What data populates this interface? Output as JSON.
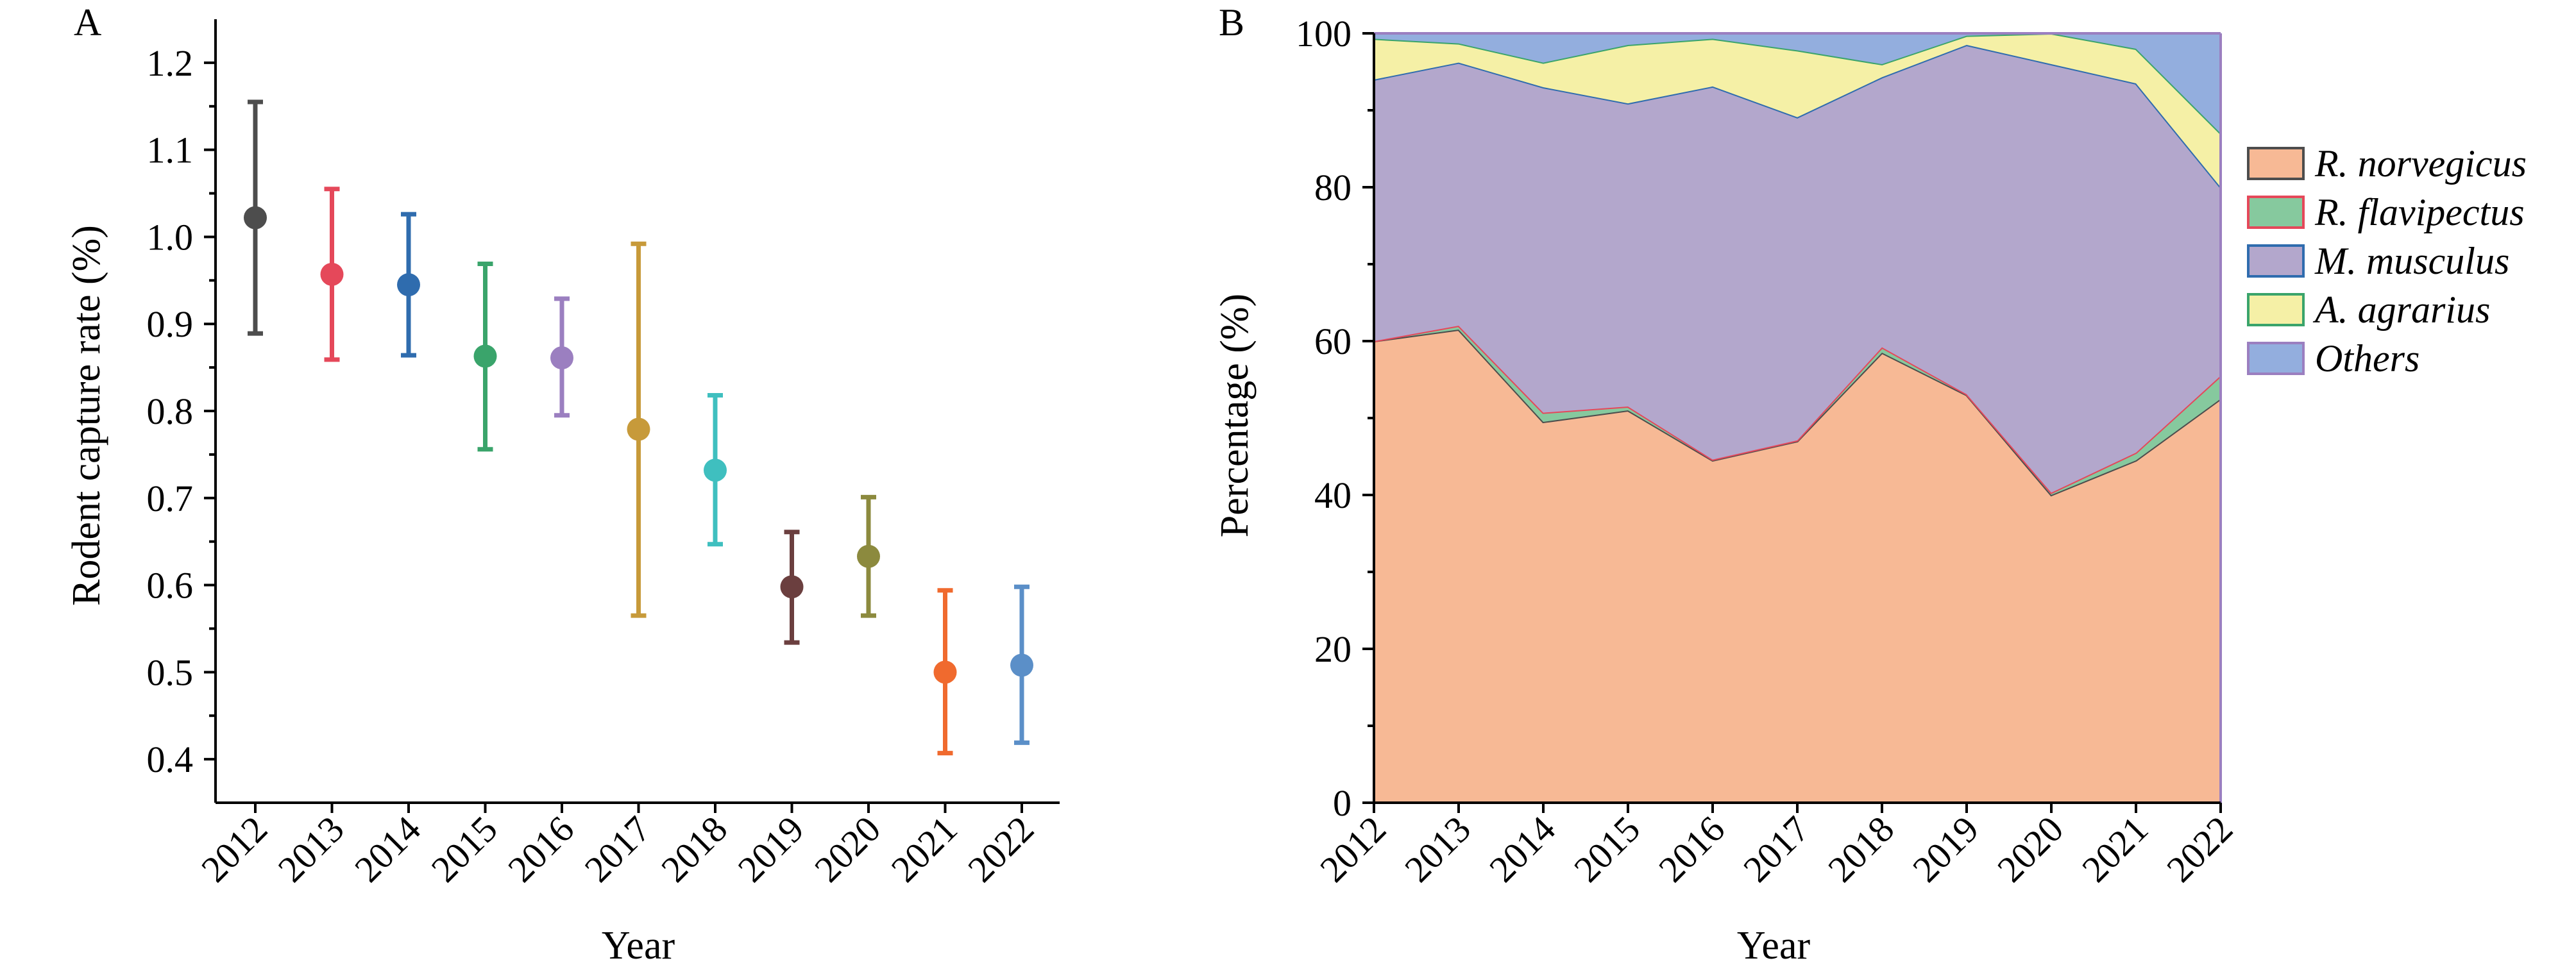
{
  "chart_data": [
    {
      "type": "scatter",
      "panel_label": "A",
      "xlabel": "Year",
      "ylabel": "Rodent capture rate (%)",
      "categories": [
        "2012",
        "2013",
        "2014",
        "2015",
        "2016",
        "2017",
        "2018",
        "2019",
        "2020",
        "2021",
        "2022"
      ],
      "values": [
        1.022,
        0.957,
        0.945,
        0.863,
        0.861,
        0.779,
        0.732,
        0.598,
        0.633,
        0.5,
        0.508
      ],
      "error_low": [
        0.889,
        0.859,
        0.864,
        0.756,
        0.795,
        0.565,
        0.647,
        0.534,
        0.565,
        0.407,
        0.419
      ],
      "error_high": [
        1.155,
        1.055,
        1.026,
        0.969,
        0.929,
        0.992,
        0.818,
        0.661,
        0.701,
        0.594,
        0.598
      ],
      "colors": [
        "#4d4d4d",
        "#e5485a",
        "#2f6cae",
        "#3aa46b",
        "#9b7fc0",
        "#c79a3a",
        "#3fbfbf",
        "#6b3f3f",
        "#8c8a3e",
        "#f06a2e",
        "#5b8fc8"
      ],
      "ylim": [
        0.35,
        1.25
      ],
      "yticks": [
        0.4,
        0.5,
        0.6,
        0.7,
        0.8,
        0.9,
        1.0,
        1.1,
        1.2
      ],
      "ytick_labels": [
        "0.4",
        "0.5",
        "0.6",
        "0.7",
        "0.8",
        "0.9",
        "1.0",
        "1.1",
        "1.2"
      ],
      "grid": false
    },
    {
      "type": "area",
      "stacked": true,
      "panel_label": "B",
      "xlabel": "Year",
      "ylabel": "Percentage (%)",
      "categories": [
        "2012",
        "2013",
        "2014",
        "2015",
        "2016",
        "2017",
        "2018",
        "2019",
        "2020",
        "2021",
        "2022"
      ],
      "series": [
        {
          "name": "R. norvegicus",
          "fill": "#f7b995",
          "stroke": "#4d4d4d",
          "values": [
            60.0,
            61.5,
            49.5,
            51.0,
            44.5,
            47.0,
            58.5,
            53.0,
            40.0,
            44.5,
            52.5
          ]
        },
        {
          "name": "R. flavipectus",
          "fill": "#86c99e",
          "stroke": "#e5485a",
          "values": [
            0.0,
            0.5,
            1.2,
            0.5,
            0.1,
            0.1,
            0.7,
            0.1,
            0.3,
            1.0,
            3.0
          ]
        },
        {
          "name": "M. musculus",
          "fill": "#b3a7cc",
          "stroke": "#2f6cae",
          "values": [
            34.0,
            34.2,
            42.3,
            39.4,
            48.5,
            42.0,
            35.1,
            45.4,
            55.7,
            48.0,
            24.5
          ]
        },
        {
          "name": "A. agrarius",
          "fill": "#f5f0a6",
          "stroke": "#3aa46b",
          "values": [
            5.3,
            2.5,
            3.2,
            7.6,
            6.2,
            8.7,
            1.7,
            1.2,
            4.0,
            4.5,
            7.0
          ]
        },
        {
          "name": "Others",
          "fill": "#93aede",
          "stroke": "#9b7fc0",
          "values": [
            0.7,
            1.3,
            3.8,
            1.5,
            0.7,
            2.2,
            4.0,
            0.3,
            0.0,
            2.0,
            13.0
          ]
        }
      ],
      "ylim": [
        0,
        100
      ],
      "yticks": [
        0,
        20,
        40,
        60,
        80,
        100
      ],
      "ytick_labels": [
        "0",
        "20",
        "40",
        "60",
        "80",
        "100"
      ],
      "legend_position": "right",
      "grid": false
    }
  ]
}
